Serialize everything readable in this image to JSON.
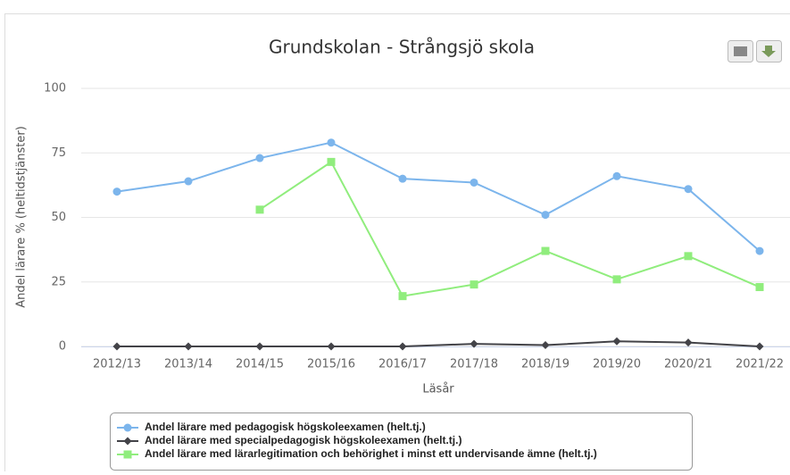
{
  "chart_data": {
    "type": "line",
    "title": "Grundskolan - Strångsjö skola",
    "x_label": "Läsår",
    "y_label": "Andel lärare % (heltidstjänster)",
    "categories": [
      "2012/13",
      "2013/14",
      "2014/15",
      "2015/16",
      "2016/17",
      "2017/18",
      "2018/19",
      "2019/20",
      "2020/21",
      "2021/22"
    ],
    "series": [
      {
        "name": "Andel lärare med pedagogisk högskoleexamen (helt.tj.)",
        "color": "#7cb5ec",
        "marker": "circle",
        "values": [
          60,
          64,
          73,
          79,
          65,
          63.5,
          51,
          66,
          61,
          37
        ]
      },
      {
        "name": "Andel lärare med specialpedagogisk högskoleexamen (helt.tj.)",
        "color": "#434348",
        "marker": "diamond",
        "values": [
          0,
          0,
          0,
          0,
          0,
          1,
          0.5,
          2,
          1.5,
          0
        ]
      },
      {
        "name": "Andel lärare med lärarlegitimation och behörighet i minst ett undervisande ämne (helt.tj.)",
        "color": "#90ed7d",
        "marker": "square",
        "values": [
          null,
          null,
          53,
          71.5,
          19.5,
          24,
          37,
          26,
          35,
          23
        ]
      }
    ],
    "ylim": [
      0,
      100
    ],
    "yticks": [
      0,
      25,
      50,
      75,
      100
    ],
    "grid": true
  }
}
